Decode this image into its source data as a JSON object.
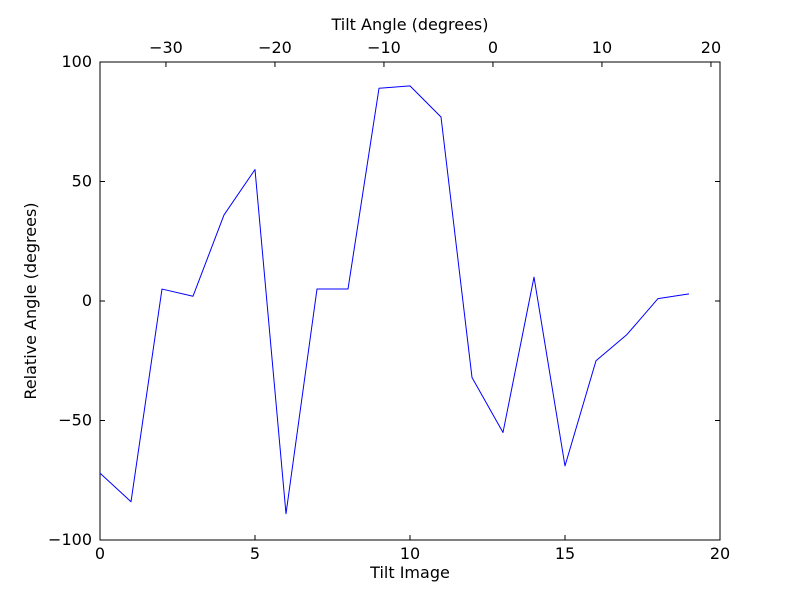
{
  "chart_data": {
    "type": "line",
    "background_color": "#ffffff",
    "axis_color": "#000000",
    "line_color": "#0000ff",
    "grid": false,
    "legend": null,
    "x": [
      0,
      1,
      2,
      3,
      4,
      5,
      6,
      7,
      8,
      9,
      10,
      11,
      12,
      13,
      14,
      15,
      16,
      17,
      18,
      19
    ],
    "y": [
      -72,
      -84,
      5,
      2,
      36,
      55,
      -89,
      5,
      5,
      89,
      90,
      77,
      -32,
      -55,
      10,
      -69,
      -25,
      -14,
      1,
      3
    ],
    "axes": {
      "bottom": {
        "label": "Tilt Image",
        "range": [
          0,
          20
        ],
        "tick_values": [
          0,
          5,
          10,
          15,
          20
        ],
        "tick_labels": [
          "0",
          "5",
          "10",
          "15",
          "20"
        ]
      },
      "top": {
        "label": "Tilt Angle (degrees)",
        "range": [
          -36.05,
          20.83
        ],
        "tick_values": [
          -30,
          -20,
          -10,
          0,
          10,
          20
        ],
        "tick_labels": [
          "−30",
          "−20",
          "−10",
          "0",
          "10",
          "20"
        ]
      },
      "left": {
        "label": "Relative Angle (degrees)",
        "range": [
          -100,
          100
        ],
        "tick_values": [
          -100,
          -50,
          0,
          50,
          100
        ],
        "tick_labels": [
          "−100",
          "−50",
          "0",
          "50",
          "100"
        ]
      },
      "right": {
        "label": "",
        "range": [
          -100,
          100
        ],
        "tick_values": [
          -100,
          -50,
          0,
          50,
          100
        ],
        "tick_labels": []
      }
    }
  }
}
